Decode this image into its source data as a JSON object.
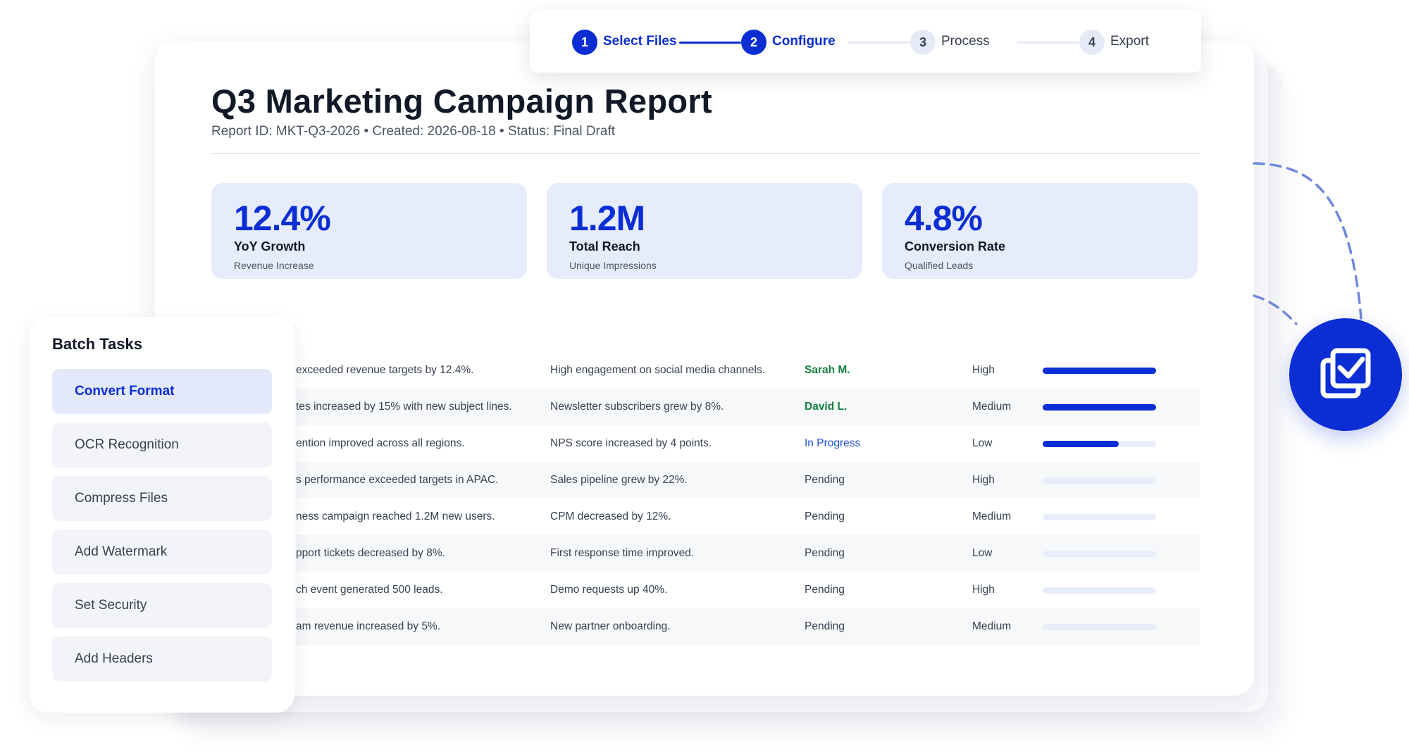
{
  "stepper": {
    "steps": [
      {
        "number": "1",
        "label": "Select Files",
        "state": "completed"
      },
      {
        "number": "2",
        "label": "Configure",
        "state": "active"
      },
      {
        "number": "3",
        "label": "Process",
        "state": "pending"
      },
      {
        "number": "4",
        "label": "Export",
        "state": "pending"
      }
    ]
  },
  "report": {
    "title": "Q3 Marketing Campaign Report",
    "meta": "Report ID: MKT-Q3-2026 • Created: 2026-08-18 • Status: Final Draft",
    "stats": [
      {
        "value": "12.4%",
        "label": "YoY Growth",
        "sub": "Revenue Increase"
      },
      {
        "value": "1.2M",
        "label": "Total Reach",
        "sub": "Unique Impressions"
      },
      {
        "value": "4.8%",
        "label": "Conversion Rate",
        "sub": "Qualified Leads"
      }
    ],
    "rows": [
      {
        "summary": "exceeded revenue targets by 12.4%.",
        "detail": "High engagement on social media channels.",
        "status": "Sarah M.",
        "priority": "High",
        "progress": 1.0
      },
      {
        "summary": "tes increased by 15% with new subject lines.",
        "detail": "Newsletter subscribers grew by 8%.",
        "status": "David L.",
        "priority": "Medium",
        "progress": 1.0
      },
      {
        "summary": "ention improved across all regions.",
        "detail": "NPS score increased by 4 points.",
        "status": "In Progress",
        "priority": "Low",
        "progress": 0.67
      },
      {
        "summary": "s performance exceeded targets in APAC.",
        "detail": "Sales pipeline grew by 22%.",
        "status": "Pending",
        "priority": "High",
        "progress": 0
      },
      {
        "summary": "ness campaign reached 1.2M new users.",
        "detail": "CPM decreased by 12%.",
        "status": "Pending",
        "priority": "Medium",
        "progress": 0
      },
      {
        "summary": "pport tickets decreased by 8%.",
        "detail": "First response time improved.",
        "status": "Pending",
        "priority": "Low",
        "progress": 0
      },
      {
        "summary": "ch event generated 500 leads.",
        "detail": "Demo requests up 40%.",
        "status": "Pending",
        "priority": "High",
        "progress": 0
      },
      {
        "summary": "am revenue increased by 5%.",
        "detail": "New partner onboarding.",
        "status": "Pending",
        "priority": "Medium",
        "progress": 0
      }
    ]
  },
  "batch": {
    "title": "Batch Tasks",
    "tasks": [
      {
        "label": "Convert Format",
        "selected": true
      },
      {
        "label": "OCR Recognition",
        "selected": false
      },
      {
        "label": "Compress Files",
        "selected": false
      },
      {
        "label": "Add Watermark",
        "selected": false
      },
      {
        "label": "Set Security",
        "selected": false
      },
      {
        "label": "Add Headers",
        "selected": false
      }
    ]
  },
  "badge": {
    "icon": "batch-documents-check-icon"
  },
  "colors": {
    "accent": "#0a2ed4",
    "card_bg": "#e6ecfc",
    "done": "#15803d"
  }
}
